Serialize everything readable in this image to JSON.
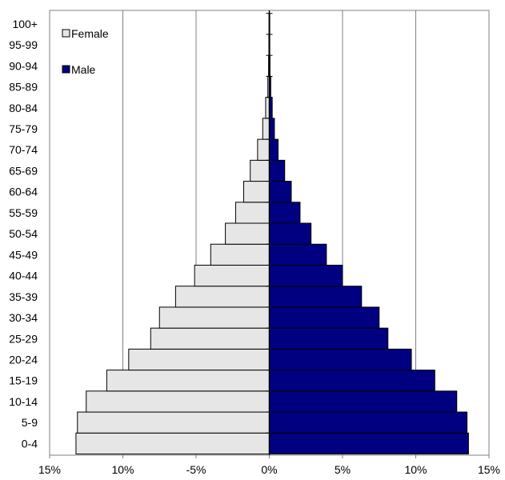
{
  "chart_data": {
    "type": "bar",
    "orientation": "horizontal",
    "subtype": "population-pyramid",
    "title": "",
    "xlabel": "",
    "ylabel": "",
    "categories": [
      "0-4",
      "5-9",
      "10-14",
      "15-19",
      "20-24",
      "25-29",
      "30-34",
      "35-39",
      "40-44",
      "45-49",
      "50-54",
      "55-59",
      "60-64",
      "65-69",
      "70-74",
      "75-79",
      "80-84",
      "85-89",
      "90-94",
      "95-99",
      "100+"
    ],
    "series": [
      {
        "name": "Female",
        "color": "#e6e6e6",
        "values": [
          -13.2,
          -13.1,
          -12.5,
          -11.1,
          -9.6,
          -8.1,
          -7.5,
          -6.4,
          -5.1,
          -4.0,
          -3.0,
          -2.3,
          -1.75,
          -1.3,
          -0.8,
          -0.45,
          -0.25,
          -0.1,
          -0.05,
          -0.03,
          -0.02
        ]
      },
      {
        "name": "Male",
        "color": "#000080",
        "values": [
          13.6,
          13.5,
          12.8,
          11.3,
          9.7,
          8.1,
          7.5,
          6.3,
          5.0,
          3.9,
          2.85,
          2.1,
          1.5,
          1.05,
          0.6,
          0.35,
          0.2,
          0.1,
          0.05,
          0.03,
          0.02
        ]
      }
    ],
    "xlim": [
      -15,
      15
    ],
    "xticks": [
      -15,
      -10,
      -5,
      0,
      5,
      10,
      15
    ],
    "xtick_labels": [
      "15%",
      "10%",
      "-5%",
      "0%",
      "5%",
      "10%",
      "15%"
    ],
    "grid": "vertical",
    "legend_position": "top-left"
  }
}
